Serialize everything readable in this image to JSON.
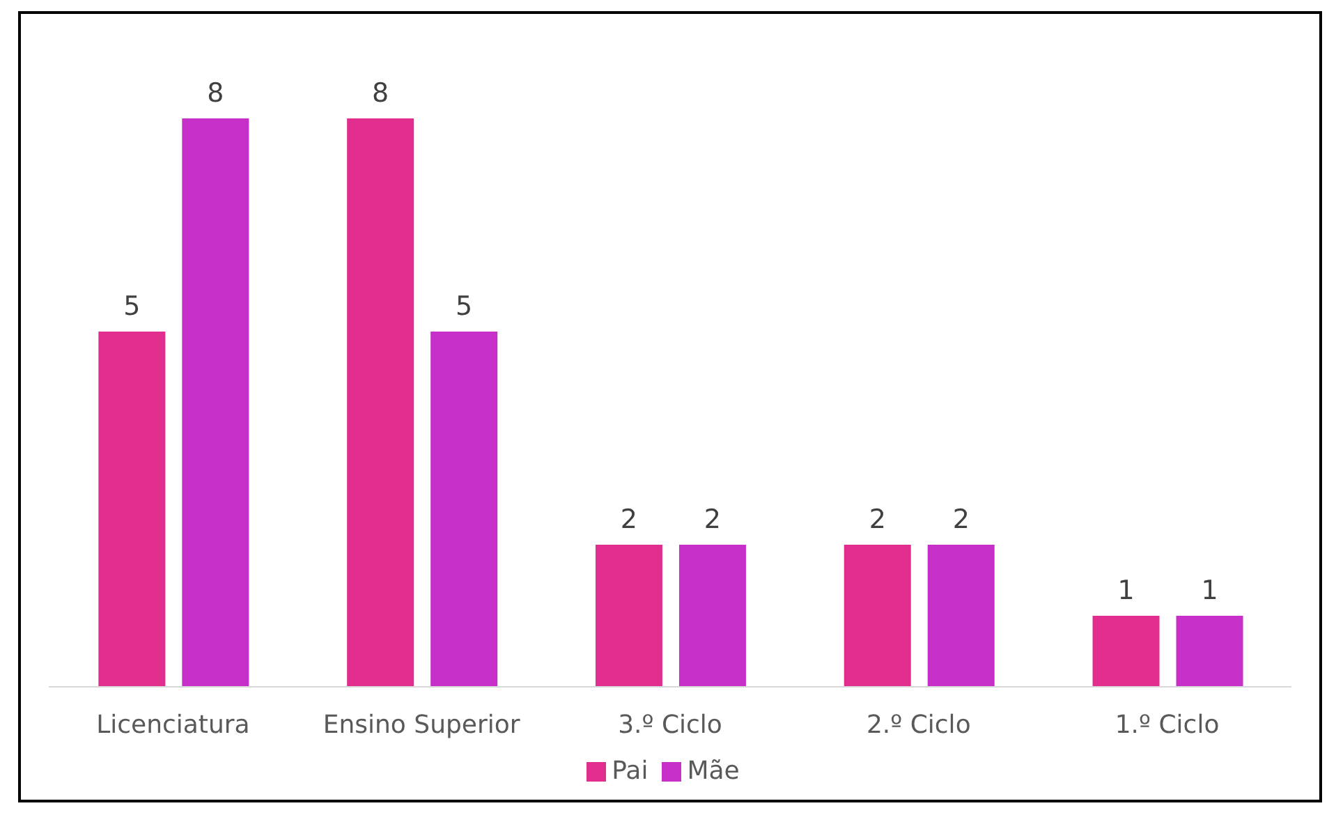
{
  "chart_data": {
    "type": "bar",
    "categories": [
      "Licenciatura",
      "Ensino Superior",
      "3.º Ciclo",
      "2.º Ciclo",
      "1.º Ciclo"
    ],
    "series": [
      {
        "name": "Pai",
        "color": "#e12e8e",
        "values": [
          5,
          8,
          2,
          2,
          1
        ]
      },
      {
        "name": "Mãe",
        "color": "#c630c9",
        "values": [
          8,
          5,
          2,
          2,
          1
        ]
      }
    ],
    "data_labels": true,
    "legend": "bottom",
    "grid": false
  }
}
